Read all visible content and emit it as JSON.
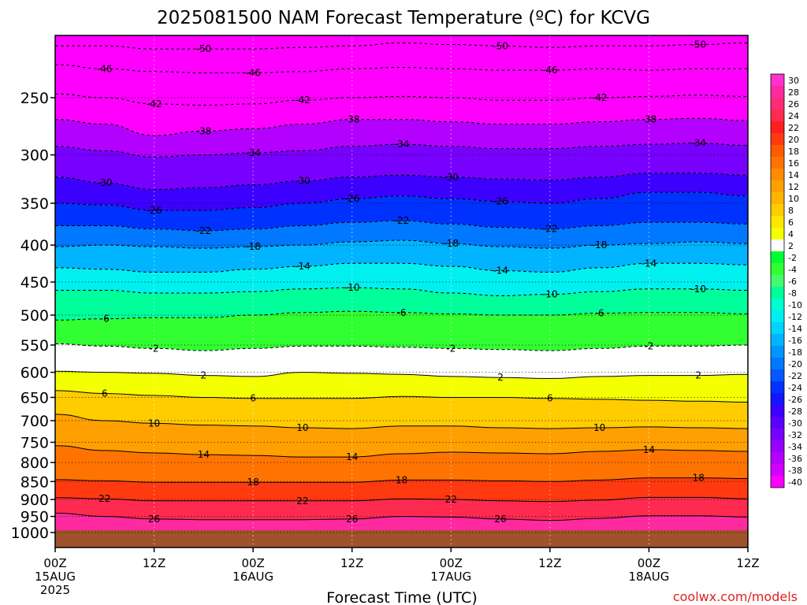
{
  "title": "2025081500 NAM Forecast Temperature (ºC) for KCVG",
  "watermark": "coolwx.com/models",
  "chart_data": {
    "type": "heatmap",
    "xlabel": "Forecast Time (UTC)",
    "ylabel": "",
    "x_ticks": [
      {
        "hour": 0,
        "label": "00Z",
        "sub": "15AUG",
        "sub2": "2025"
      },
      {
        "hour": 12,
        "label": "12Z",
        "sub": "",
        "sub2": ""
      },
      {
        "hour": 24,
        "label": "00Z",
        "sub": "16AUG",
        "sub2": ""
      },
      {
        "hour": 36,
        "label": "12Z",
        "sub": "",
        "sub2": ""
      },
      {
        "hour": 48,
        "label": "00Z",
        "sub": "17AUG",
        "sub2": ""
      },
      {
        "hour": 60,
        "label": "12Z",
        "sub": "",
        "sub2": ""
      },
      {
        "hour": 72,
        "label": "00Z",
        "sub": "18AUG",
        "sub2": ""
      },
      {
        "hour": 84,
        "label": "12Z",
        "sub": "",
        "sub2": ""
      }
    ],
    "x_range": [
      0,
      84
    ],
    "y_ticks": [
      "250",
      "300",
      "350",
      "400",
      "450",
      "500",
      "550",
      "600",
      "650",
      "700",
      "750",
      "800",
      "850",
      "900",
      "950",
      "1000"
    ],
    "y_values": [
      250,
      300,
      350,
      400,
      450,
      500,
      550,
      600,
      650,
      700,
      750,
      800,
      850,
      900,
      950,
      1000
    ],
    "y_range_hPa": [
      200,
      1000
    ],
    "y_scale": "log-pressure",
    "ground": "below 975 hPa",
    "grid": true,
    "contour_interval": 4,
    "legend": {
      "position": "right",
      "labels": [
        "30",
        "28",
        "26",
        "24",
        "22",
        "20",
        "18",
        "16",
        "14",
        "12",
        "10",
        "8",
        "6",
        "4",
        "2",
        "-2",
        "-4",
        "-6",
        "-8",
        "-10",
        "-12",
        "-14",
        "-16",
        "-18",
        "-20",
        "-22",
        "-24",
        "-26",
        "-28",
        "-30",
        "-32",
        "-34",
        "-36",
        "-38",
        "-40"
      ],
      "colors": [
        "#ff33cc",
        "#ff2aa0",
        "#ff2a78",
        "#ff2a50",
        "#ff1e1e",
        "#ff3a10",
        "#ff5a00",
        "#ff7400",
        "#ff8c00",
        "#ffa000",
        "#ffb400",
        "#ffcc00",
        "#ffe600",
        "#f4ff00",
        "#ffffff",
        "#00ff32",
        "#32ff32",
        "#46fa6e",
        "#00ff9a",
        "#00ffd2",
        "#00f0f0",
        "#00d4ff",
        "#00b4ff",
        "#0096ff",
        "#0078ff",
        "#005aff",
        "#0032ff",
        "#1414ff",
        "#3c00ff",
        "#5a00ff",
        "#7800ff",
        "#9600ff",
        "#b400ff",
        "#d200ff",
        "#ff00ff"
      ]
    },
    "isotherms": [
      {
        "value": -50,
        "label": "-50",
        "dashed": true,
        "pressure": [
          212,
          212,
          214,
          214,
          214,
          213,
          212,
          210,
          211,
          212,
          213,
          212,
          212,
          211,
          210
        ]
      },
      {
        "value": -46,
        "label": "-46",
        "dashed": true,
        "pressure": [
          225,
          228,
          230,
          231,
          231,
          230,
          228,
          227,
          228,
          229,
          229,
          228,
          229,
          228,
          228
        ]
      },
      {
        "value": -42,
        "label": "-42",
        "dashed": true,
        "pressure": [
          247,
          250,
          255,
          256,
          255,
          252,
          250,
          249,
          250,
          252,
          252,
          250,
          249,
          248,
          249
        ]
      },
      {
        "value": -38,
        "label": "-38",
        "dashed": true,
        "pressure": [
          268,
          272,
          282,
          278,
          276,
          272,
          268,
          268,
          270,
          272,
          272,
          270,
          268,
          267,
          269
        ]
      },
      {
        "value": -34,
        "label": "-34",
        "dashed": true,
        "pressure": [
          292,
          296,
          302,
          300,
          298,
          296,
          292,
          290,
          292,
          294,
          294,
          292,
          290,
          289,
          291
        ]
      },
      {
        "value": -30,
        "label": "-30",
        "dashed": true,
        "pressure": [
          322,
          328,
          335,
          333,
          330,
          326,
          322,
          320,
          322,
          324,
          325,
          322,
          318,
          318,
          320
        ]
      },
      {
        "value": -26,
        "label": "-26",
        "dashed": true,
        "pressure": [
          350,
          352,
          358,
          358,
          355,
          350,
          345,
          342,
          345,
          348,
          350,
          345,
          338,
          338,
          342
        ]
      },
      {
        "value": -22,
        "label": "-22",
        "dashed": true,
        "pressure": [
          376,
          376,
          380,
          382,
          380,
          376,
          372,
          370,
          374,
          378,
          380,
          376,
          372,
          372,
          374
        ]
      },
      {
        "value": -18,
        "label": "-18",
        "dashed": true,
        "pressure": [
          402,
          400,
          402,
          404,
          402,
          400,
          396,
          394,
          398,
          402,
          404,
          400,
          398,
          396,
          398
        ]
      },
      {
        "value": -14,
        "label": "-14",
        "dashed": true,
        "pressure": [
          430,
          432,
          436,
          436,
          432,
          428,
          424,
          424,
          428,
          434,
          436,
          430,
          424,
          424,
          426
        ]
      },
      {
        "value": -10,
        "label": "-10",
        "dashed": true,
        "pressure": [
          462,
          462,
          466,
          466,
          464,
          460,
          458,
          460,
          466,
          470,
          468,
          464,
          460,
          460,
          462
        ]
      },
      {
        "value": -6,
        "label": "-6",
        "dashed": true,
        "pressure": [
          508,
          506,
          504,
          504,
          500,
          496,
          494,
          496,
          498,
          500,
          500,
          497,
          496,
          496,
          498
        ]
      },
      {
        "value": -2,
        "label": "-2",
        "dashed": true,
        "pressure": [
          548,
          552,
          556,
          560,
          556,
          552,
          552,
          554,
          556,
          558,
          560,
          556,
          552,
          552,
          550
        ]
      },
      {
        "value": 2,
        "label": "2",
        "dashed": false,
        "pressure": [
          598,
          600,
          602,
          606,
          608,
          600,
          602,
          604,
          608,
          610,
          612,
          608,
          606,
          606,
          604
        ]
      },
      {
        "value": 6,
        "label": "6",
        "dashed": false,
        "pressure": [
          636,
          642,
          646,
          650,
          652,
          652,
          652,
          648,
          650,
          650,
          652,
          654,
          656,
          658,
          660
        ]
      },
      {
        "value": 10,
        "label": "10",
        "dashed": false,
        "pressure": [
          686,
          700,
          706,
          710,
          712,
          716,
          718,
          712,
          712,
          716,
          718,
          716,
          714,
          716,
          718
        ]
      },
      {
        "value": 14,
        "label": "14",
        "dashed": false,
        "pressure": [
          758,
          770,
          776,
          780,
          782,
          786,
          786,
          778,
          774,
          776,
          778,
          772,
          768,
          770,
          772
        ]
      },
      {
        "value": 18,
        "label": "18",
        "dashed": false,
        "pressure": [
          845,
          848,
          852,
          852,
          852,
          852,
          852,
          846,
          846,
          848,
          850,
          846,
          840,
          840,
          842
        ]
      },
      {
        "value": 22,
        "label": "22",
        "dashed": false,
        "pressure": [
          895,
          898,
          904,
          904,
          904,
          904,
          904,
          898,
          900,
          904,
          906,
          902,
          894,
          894,
          898
        ]
      },
      {
        "value": 26,
        "label": "26",
        "dashed": false,
        "pressure": [
          940,
          950,
          958,
          960,
          960,
          960,
          958,
          950,
          952,
          958,
          962,
          956,
          948,
          948,
          952
        ]
      }
    ],
    "isotherm_x_hours": [
      0,
      6,
      12,
      18,
      24,
      30,
      36,
      42,
      48,
      54,
      60,
      66,
      72,
      78,
      84
    ]
  }
}
